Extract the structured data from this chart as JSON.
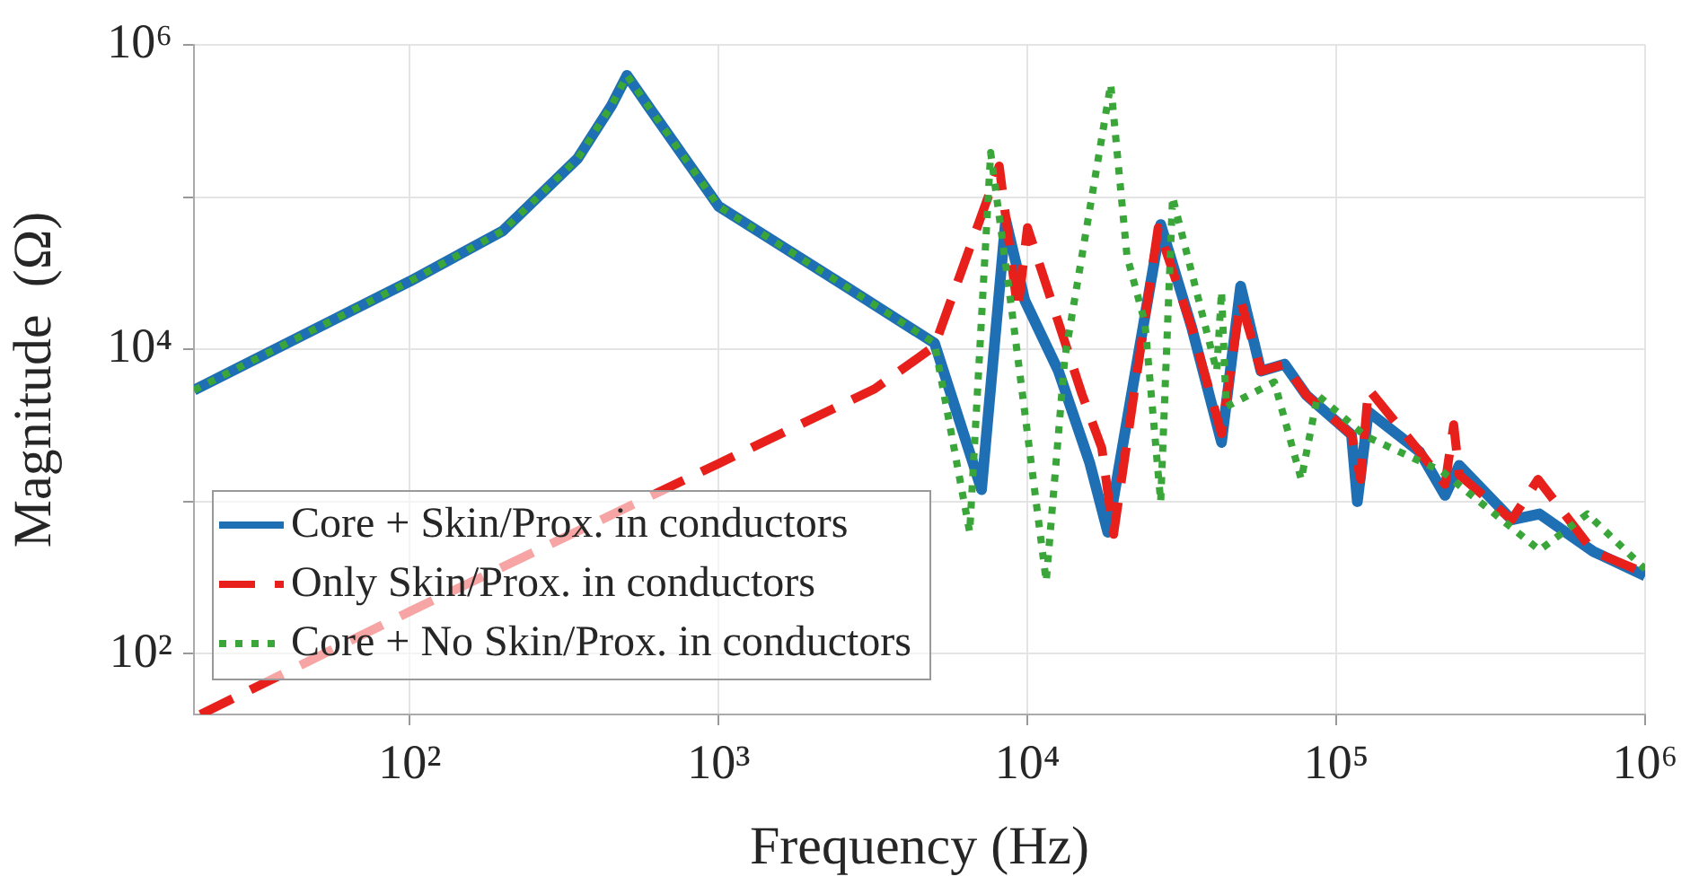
{
  "chart_data": {
    "type": "line",
    "xlabel": "Frequency (Hz)",
    "ylabel": "Magnitude  (Ω)",
    "log": "xy",
    "grid": true,
    "legend": "bottom left",
    "marker": "none",
    "xlim": [
      20,
      1000000
    ],
    "ylim": [
      40,
      1000000
    ],
    "xticks": [
      {
        "value": 100,
        "label": "10²"
      },
      {
        "value": 1000,
        "label": "10³"
      },
      {
        "value": 10000,
        "label": "10⁴"
      },
      {
        "value": 100000,
        "label": "10⁵"
      },
      {
        "value": 1000000,
        "label": "10⁶"
      }
    ],
    "yticks": [
      {
        "value": 100,
        "label": "10²"
      },
      {
        "value": 1000,
        "label": null
      },
      {
        "value": 10000,
        "label": "10⁴"
      },
      {
        "value": 100000,
        "label": null
      },
      {
        "value": 1000000,
        "label": "10⁶"
      }
    ],
    "series": [
      {
        "name": "Core + Skin/Prox. in conductors",
        "color": "#1f6fb5",
        "line_style": "solid",
        "x": [
          20,
          100,
          200,
          350,
          450,
          505,
          600,
          1000,
          2570,
          5000,
          7100,
          8500,
          9800,
          12600,
          15900,
          18200,
          27000,
          34000,
          42500,
          49000,
          57000,
          68000,
          80000,
          112000,
          117000,
          127000,
          186000,
          225000,
          250000,
          370000,
          455000,
          680000,
          1000000
        ],
        "values": [
          5400,
          28000,
          60000,
          180000,
          400000,
          630000,
          380000,
          87000,
          26000,
          11000,
          1200,
          71000,
          21000,
          7200,
          1800,
          630,
          66000,
          14000,
          2450,
          26000,
          7200,
          8000,
          5000,
          2750,
          1000,
          3900,
          2130,
          1100,
          1730,
          760,
          830,
          470,
          325
        ]
      },
      {
        "name": "Only Skin/Prox. in conductors",
        "color": "#e8201c",
        "line_style": "dashed",
        "x": [
          21,
          100,
          1000,
          3200,
          5000,
          8100,
          9300,
          10000,
          15000,
          17400,
          19000,
          26500,
          34000,
          42500,
          49000,
          57000,
          68000,
          80000,
          112000,
          120000,
          127000,
          186000,
          225000,
          240000,
          250000,
          370000,
          450000,
          680000,
          1000000
        ],
        "values": [
          40,
          190,
          1780,
          5500,
          10500,
          160000,
          18000,
          63000,
          5100,
          2250,
          610,
          63000,
          14000,
          2800,
          21000,
          7200,
          8000,
          5000,
          2750,
          1400,
          5500,
          2130,
          1300,
          3200,
          1500,
          760,
          1400,
          470,
          340
        ]
      },
      {
        "name": "Core + No Skin/Prox. in conductors",
        "color": "#3aa63a",
        "line_style": "dotted",
        "x": [
          20,
          100,
          200,
          350,
          450,
          505,
          600,
          1000,
          2570,
          5000,
          6500,
          7600,
          8900,
          11500,
          13200,
          18600,
          21000,
          24000,
          27000,
          29500,
          41000,
          42500,
          44000,
          63000,
          77000,
          87000,
          124000,
          220000,
          455000,
          650000,
          1000000
        ],
        "values": [
          5400,
          28000,
          60000,
          180000,
          400000,
          630000,
          380000,
          87000,
          26000,
          11000,
          630,
          196000,
          18000,
          300,
          8700,
          550000,
          41000,
          15000,
          1000,
          100000,
          7200,
          24000,
          4200,
          6100,
          1400,
          5000,
          2700,
          1580,
          480,
          830,
          360
        ]
      }
    ]
  }
}
